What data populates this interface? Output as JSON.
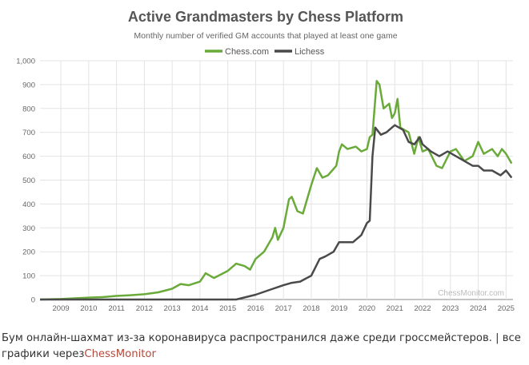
{
  "chart_data": {
    "type": "line",
    "title": "Active Grandmasters by Chess Platform",
    "subtitle": "Monthly number of verified GM accounts that played at least one game",
    "xlabel": "",
    "ylabel": "",
    "ylim": [
      0,
      1000
    ],
    "xlim": [
      2008.25,
      2025.25
    ],
    "yticks": [
      0,
      100,
      200,
      300,
      400,
      500,
      600,
      700,
      800,
      900,
      1000
    ],
    "ytick_labels": [
      "0",
      "100",
      "200",
      "300",
      "400",
      "500",
      "600",
      "700",
      "800",
      "900",
      "1,000"
    ],
    "xticks": [
      2009,
      2010,
      2011,
      2012,
      2013,
      2014,
      2015,
      2016,
      2017,
      2018,
      2019,
      2020,
      2021,
      2022,
      2023,
      2024,
      2025
    ],
    "xtick_labels": [
      "2009",
      "2010",
      "2011",
      "2012",
      "2013",
      "2014",
      "2015",
      "2016",
      "2017",
      "2018",
      "2019",
      "2020",
      "2021",
      "2022",
      "2023",
      "2024",
      "2025"
    ],
    "grid": true,
    "legend": "top-center",
    "watermark": "ChessMonitor.com",
    "series": [
      {
        "name": "Chess.com",
        "color": "#6aaa3a",
        "points": [
          [
            2008.25,
            0
          ],
          [
            2009,
            2
          ],
          [
            2009.5,
            5
          ],
          [
            2010,
            8
          ],
          [
            2010.5,
            10
          ],
          [
            2011,
            15
          ],
          [
            2011.5,
            18
          ],
          [
            2012,
            22
          ],
          [
            2012.5,
            30
          ],
          [
            2013,
            45
          ],
          [
            2013.3,
            65
          ],
          [
            2013.6,
            60
          ],
          [
            2014,
            75
          ],
          [
            2014.2,
            110
          ],
          [
            2014.5,
            90
          ],
          [
            2015,
            120
          ],
          [
            2015.3,
            150
          ],
          [
            2015.6,
            140
          ],
          [
            2015.8,
            125
          ],
          [
            2016,
            170
          ],
          [
            2016.3,
            200
          ],
          [
            2016.6,
            260
          ],
          [
            2016.7,
            300
          ],
          [
            2016.8,
            250
          ],
          [
            2017,
            300
          ],
          [
            2017.2,
            420
          ],
          [
            2017.3,
            430
          ],
          [
            2017.5,
            370
          ],
          [
            2017.7,
            360
          ],
          [
            2017.9,
            440
          ],
          [
            2018,
            480
          ],
          [
            2018.2,
            550
          ],
          [
            2018.4,
            510
          ],
          [
            2018.6,
            520
          ],
          [
            2018.9,
            560
          ],
          [
            2019,
            620
          ],
          [
            2019.1,
            650
          ],
          [
            2019.3,
            630
          ],
          [
            2019.6,
            640
          ],
          [
            2019.8,
            620
          ],
          [
            2020,
            630
          ],
          [
            2020.1,
            680
          ],
          [
            2020.2,
            690
          ],
          [
            2020.35,
            915
          ],
          [
            2020.45,
            900
          ],
          [
            2020.6,
            800
          ],
          [
            2020.8,
            820
          ],
          [
            2020.9,
            760
          ],
          [
            2021,
            780
          ],
          [
            2021.1,
            840
          ],
          [
            2021.2,
            720
          ],
          [
            2021.5,
            700
          ],
          [
            2021.7,
            610
          ],
          [
            2021.85,
            680
          ],
          [
            2022,
            620
          ],
          [
            2022.2,
            630
          ],
          [
            2022.5,
            560
          ],
          [
            2022.7,
            550
          ],
          [
            2023,
            620
          ],
          [
            2023.2,
            630
          ],
          [
            2023.5,
            580
          ],
          [
            2023.8,
            600
          ],
          [
            2024,
            660
          ],
          [
            2024.2,
            610
          ],
          [
            2024.5,
            630
          ],
          [
            2024.7,
            600
          ],
          [
            2024.85,
            630
          ],
          [
            2025,
            610
          ],
          [
            2025.2,
            570
          ]
        ]
      },
      {
        "name": "Lichess",
        "color": "#4a4a4a",
        "points": [
          [
            2008.25,
            0
          ],
          [
            2015.3,
            0
          ],
          [
            2016,
            20
          ],
          [
            2016.5,
            40
          ],
          [
            2017,
            60
          ],
          [
            2017.3,
            70
          ],
          [
            2017.6,
            75
          ],
          [
            2018,
            100
          ],
          [
            2018.3,
            170
          ],
          [
            2018.5,
            180
          ],
          [
            2018.8,
            200
          ],
          [
            2019,
            240
          ],
          [
            2019.5,
            240
          ],
          [
            2019.8,
            270
          ],
          [
            2020,
            320
          ],
          [
            2020.1,
            330
          ],
          [
            2020.2,
            600
          ],
          [
            2020.3,
            720
          ],
          [
            2020.5,
            690
          ],
          [
            2020.7,
            700
          ],
          [
            2021,
            730
          ],
          [
            2021.3,
            710
          ],
          [
            2021.5,
            660
          ],
          [
            2021.7,
            650
          ],
          [
            2021.9,
            680
          ],
          [
            2022,
            650
          ],
          [
            2022.3,
            620
          ],
          [
            2022.6,
            600
          ],
          [
            2022.9,
            620
          ],
          [
            2023.2,
            600
          ],
          [
            2023.5,
            580
          ],
          [
            2023.8,
            560
          ],
          [
            2024,
            560
          ],
          [
            2024.2,
            540
          ],
          [
            2024.5,
            540
          ],
          [
            2024.8,
            520
          ],
          [
            2025,
            540
          ],
          [
            2025.2,
            510
          ]
        ]
      }
    ]
  },
  "caption": {
    "text": "Бум онлайн-шахмат из-за коронавируса распространился даже среди гроссмейстеров. | все графики через",
    "link": "ChessMonitor"
  }
}
